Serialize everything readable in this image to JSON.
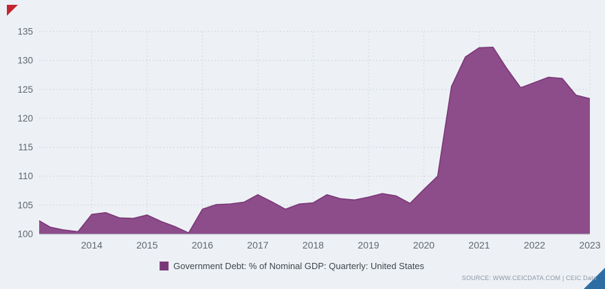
{
  "page": {
    "background": "#edf1f5",
    "corner_red": "#c2262e",
    "corner_blue": "#2e6da4"
  },
  "chart_data": {
    "type": "area",
    "title": "",
    "series_name": "Government Debt: % of Nominal GDP: Quarterly: United States",
    "xlabel": "",
    "ylabel": "",
    "xlim": [
      2013.05,
      2023.0
    ],
    "ylim": [
      100,
      135
    ],
    "yticks": [
      100,
      105,
      110,
      115,
      120,
      125,
      130,
      135
    ],
    "xticks": [
      2014,
      2015,
      2016,
      2017,
      2018,
      2019,
      2020,
      2021,
      2022,
      2023
    ],
    "grid": true,
    "legend_position": "bottom",
    "x": [
      2013.05,
      2013.25,
      2013.5,
      2013.75,
      2014.0,
      2014.25,
      2014.5,
      2014.75,
      2015.0,
      2015.25,
      2015.5,
      2015.75,
      2016.0,
      2016.25,
      2016.5,
      2016.75,
      2017.0,
      2017.25,
      2017.5,
      2017.75,
      2018.0,
      2018.25,
      2018.5,
      2018.75,
      2019.0,
      2019.25,
      2019.5,
      2019.75,
      2020.0,
      2020.25,
      2020.5,
      2020.75,
      2021.0,
      2021.25,
      2021.5,
      2021.75,
      2022.0,
      2022.25,
      2022.5,
      2022.75,
      2023.0
    ],
    "values": [
      102.3,
      101.2,
      100.7,
      100.4,
      103.4,
      103.7,
      102.8,
      102.7,
      103.3,
      102.2,
      101.3,
      100.2,
      104.3,
      105.1,
      105.2,
      105.5,
      106.8,
      105.6,
      104.3,
      105.2,
      105.4,
      106.8,
      106.1,
      105.9,
      106.4,
      107.0,
      106.6,
      105.3,
      107.7,
      110.0,
      125.5,
      130.6,
      132.2,
      132.3,
      128.6,
      125.3,
      126.2,
      127.1,
      126.9,
      124.0,
      123.4
    ],
    "colors": {
      "area_fill": "#8d4c8a",
      "area_stroke": "#7b3878",
      "legend_swatch": "#7b3878",
      "grid": "#ccd3d9",
      "vgrid": "#d4dade",
      "axis": "#aab0b7",
      "tick_text": "#5f666d"
    }
  },
  "legend": {
    "label": "Government Debt: % of Nominal GDP: Quarterly: United States"
  },
  "source": {
    "text": "SOURCE: WWW.CEICDATA.COM | CEIC Data"
  }
}
